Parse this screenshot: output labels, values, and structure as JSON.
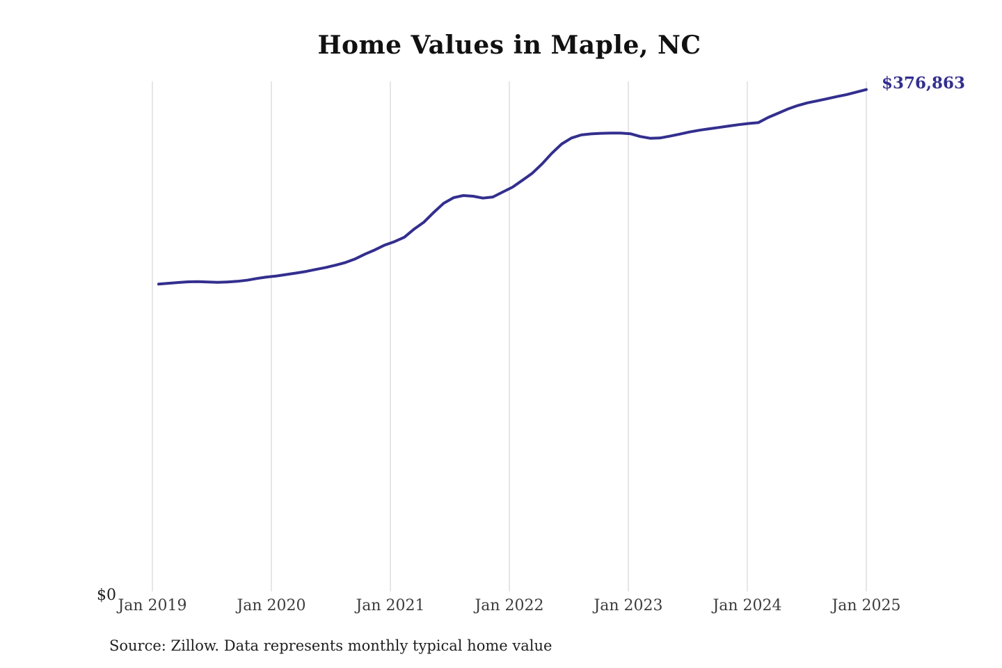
{
  "title": "Home Values in Maple, NC",
  "end_label": "$376,863",
  "y_zero_label": "$0",
  "source_note": "Source: Zillow. Data represents monthly typical home value",
  "colors": {
    "background": "#ffffff",
    "line": "#332f8e",
    "end_label_text": "#332f8e",
    "gridline": "#cccccc",
    "title_text": "#111111",
    "tick_label_text": "#3d3d3d",
    "note_text": "#1f1f1f"
  },
  "chart_data": {
    "type": "line",
    "title": "Home Values in Maple, NC",
    "xlabel": "",
    "ylabel": "",
    "x_tick_labels": [
      "Jan 2019",
      "Jan 2020",
      "Jan 2021",
      "Jan 2022",
      "Jan 2023",
      "Jan 2024",
      "Jan 2025"
    ],
    "y_tick_labels": [
      "$0"
    ],
    "ylim": [
      0,
      383000
    ],
    "grid": "vertical-only",
    "legend": "none",
    "annotation_last_point": "$376,863",
    "last_value": 376863,
    "series": [
      {
        "name": "Monthly typical home value",
        "unit": "USD",
        "x_start": "2019-01",
        "x_interval": "monthly",
        "months": [
          "2019-01",
          "2019-02",
          "2019-03",
          "2019-04",
          "2019-05",
          "2019-06",
          "2019-07",
          "2019-08",
          "2019-09",
          "2019-10",
          "2019-11",
          "2019-12",
          "2020-01",
          "2020-02",
          "2020-03",
          "2020-04",
          "2020-05",
          "2020-06",
          "2020-07",
          "2020-08",
          "2020-09",
          "2020-10",
          "2020-11",
          "2020-12",
          "2021-01",
          "2021-02",
          "2021-03",
          "2021-04",
          "2021-05",
          "2021-06",
          "2021-07",
          "2021-08",
          "2021-09",
          "2021-10",
          "2021-11",
          "2021-12",
          "2022-01",
          "2022-02",
          "2022-03",
          "2022-04",
          "2022-05",
          "2022-06",
          "2022-07",
          "2022-08",
          "2022-09",
          "2022-10",
          "2022-11",
          "2022-12",
          "2023-01",
          "2023-02",
          "2023-03",
          "2023-04",
          "2023-05",
          "2023-06",
          "2023-07",
          "2023-08",
          "2023-09",
          "2023-10",
          "2023-11",
          "2023-12",
          "2024-01",
          "2024-02",
          "2024-03",
          "2024-04",
          "2024-05",
          "2024-06",
          "2024-07",
          "2024-08",
          "2024-09",
          "2024-10",
          "2024-11",
          "2024-12",
          "2025-01"
        ],
        "values": [
          230800,
          231400,
          232000,
          232500,
          232600,
          232400,
          232100,
          232400,
          232900,
          233700,
          235000,
          236100,
          236900,
          238000,
          239100,
          240300,
          241800,
          243300,
          245000,
          247000,
          249700,
          253300,
          256500,
          260100,
          262700,
          266000,
          272200,
          277400,
          284700,
          291500,
          295700,
          297300,
          296800,
          295400,
          296200,
          299900,
          303600,
          308700,
          314000,
          321000,
          329000,
          336000,
          340500,
          342800,
          343600,
          344000,
          344200,
          344200,
          343700,
          341600,
          340300,
          340500,
          341900,
          343400,
          345000,
          346300,
          347400,
          348400,
          349500,
          350500,
          351400,
          352000,
          355900,
          359000,
          362200,
          364800,
          366900,
          368400,
          370000,
          371600,
          373100,
          375000,
          376863
        ]
      }
    ]
  }
}
